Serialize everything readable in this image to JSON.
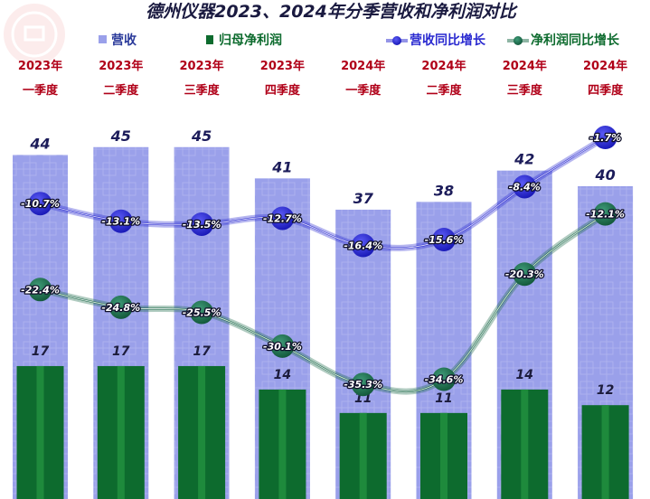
{
  "title": "德州仪器2023、2024年分季营收和净利润对比",
  "legend": {
    "revenue": "营收",
    "net_profit": "归母净利润",
    "revenue_growth": "营收同比增长",
    "profit_growth": "净利润同比增长"
  },
  "colors": {
    "revenue_bar": "#9aa0ea",
    "net_profit_bar": "#0d6b2e",
    "revenue_growth_line": "#2a2ad0",
    "profit_growth_line": "#1d6b4a",
    "category_text": "#b00018",
    "legend_revenue_text": "#2a3a9a",
    "legend_profit_text": "#0d6b2e"
  },
  "chart_data": {
    "type": "bar",
    "categories": [
      [
        "2023年",
        "一季度"
      ],
      [
        "2023年",
        "二季度"
      ],
      [
        "2023年",
        "三季度"
      ],
      [
        "2023年",
        "四季度"
      ],
      [
        "2024年",
        "一季度"
      ],
      [
        "2024年",
        "二季度"
      ],
      [
        "2024年",
        "三季度"
      ],
      [
        "2024年",
        "四季度"
      ]
    ],
    "series": [
      {
        "name": "营收",
        "type": "bar",
        "values": [
          44,
          45,
          45,
          41,
          37,
          38,
          42,
          40
        ]
      },
      {
        "name": "归母净利润",
        "type": "bar",
        "values": [
          17,
          17,
          17,
          14,
          11,
          11,
          14,
          12
        ]
      },
      {
        "name": "营收同比增长",
        "type": "line",
        "values": [
          -10.7,
          -13.1,
          -13.5,
          -12.7,
          -16.4,
          -15.6,
          -8.4,
          -1.7
        ]
      },
      {
        "name": "净利润同比增长",
        "type": "line",
        "values": [
          -22.4,
          -24.8,
          -25.5,
          -30.1,
          -35.3,
          -34.6,
          -20.3,
          -12.1
        ]
      }
    ],
    "legend_position": "top",
    "grid": false
  }
}
